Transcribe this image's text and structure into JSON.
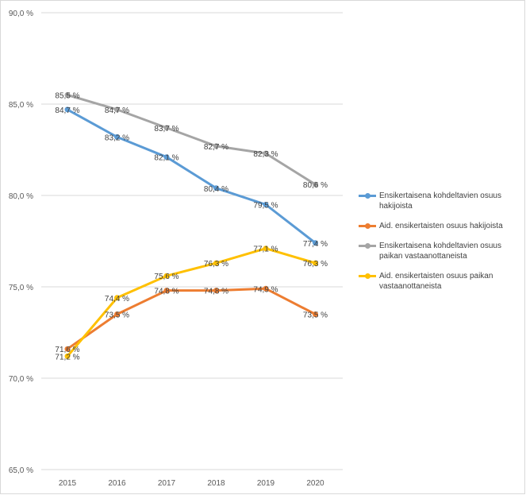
{
  "chart_data": {
    "type": "line",
    "categories": [
      "2015",
      "2016",
      "2017",
      "2018",
      "2019",
      "2020"
    ],
    "ylim": [
      65.0,
      90.0
    ],
    "yticks": [
      65.0,
      70.0,
      75.0,
      80.0,
      85.0,
      90.0
    ],
    "ytick_labels": [
      "65,0 %",
      "70,0 %",
      "75,0 %",
      "80,0 %",
      "85,0 %",
      "90,0 %"
    ],
    "title": "",
    "xlabel": "",
    "ylabel": "",
    "legend_position": "right",
    "series": [
      {
        "name": "Ensikertaisena kohdeltavien osuus hakijoista",
        "color": "#5b9bd5",
        "values": [
          84.7,
          83.2,
          82.1,
          80.4,
          79.5,
          77.4
        ],
        "labels": [
          "84,7 %",
          "83,2 %",
          "82,1 %",
          "80,4 %",
          "79,5 %",
          "77,4 %"
        ]
      },
      {
        "name": "Aid. ensikertaisten osuus hakijoista",
        "color": "#ed7d31",
        "values": [
          71.6,
          73.5,
          74.8,
          74.8,
          74.9,
          73.5
        ],
        "labels": [
          "71,6 %",
          "73,5 %",
          "74,8 %",
          "74,8 %",
          "74,9 %",
          "73,5 %"
        ]
      },
      {
        "name": "Ensikertaisena kohdeltavien osuus paikan vastaanottaneista",
        "color": "#a5a5a5",
        "values": [
          85.5,
          84.7,
          83.7,
          82.7,
          82.3,
          80.6
        ],
        "labels": [
          "85,5 %",
          "84,7 %",
          "83,7 %",
          "82,7 %",
          "82,3 %",
          "80,6 %"
        ]
      },
      {
        "name": "Aid. ensikertaisten osuus paikan vastaanottaneista",
        "color": "#ffc000",
        "values": [
          71.2,
          74.4,
          75.6,
          76.3,
          77.1,
          76.3
        ],
        "labels": [
          "71,2 %",
          "74,4 %",
          "75,6 %",
          "76,3 %",
          "77,1 %",
          "76,3 %"
        ]
      }
    ]
  }
}
